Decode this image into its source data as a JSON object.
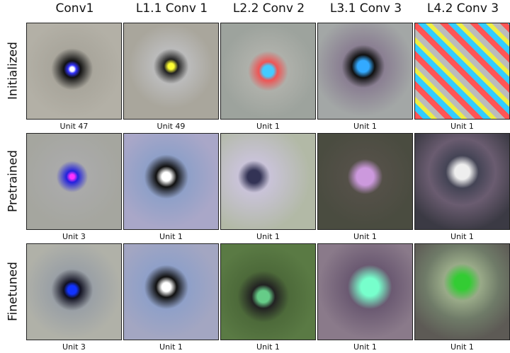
{
  "columns": [
    "Conv1",
    "L1.1 Conv 1",
    "L2.2 Conv 2",
    "L3.1 Conv 3",
    "L4.2 Conv 3"
  ],
  "rows": [
    {
      "label": "Initialized",
      "units": [
        "Unit 47",
        "Unit 49",
        "Unit 1",
        "Unit 1",
        "Unit 1"
      ]
    },
    {
      "label": "Pretrained",
      "units": [
        "Unit 3",
        "Unit 1",
        "Unit 1",
        "Unit 1",
        "Unit 1"
      ]
    },
    {
      "label": "Finetuned",
      "units": [
        "Unit 3",
        "Unit 1",
        "Unit 1",
        "Unit 1",
        "Unit 1"
      ]
    }
  ]
}
